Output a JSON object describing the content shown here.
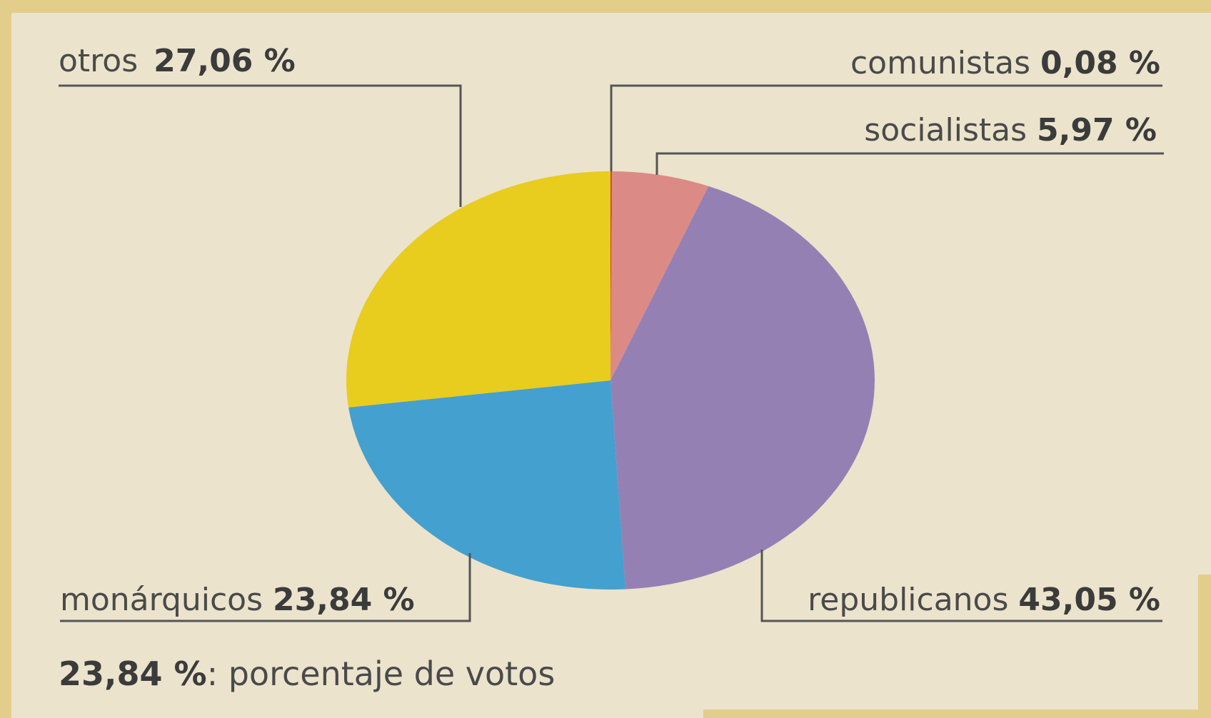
{
  "chart_data": {
    "type": "pie",
    "title": "",
    "slices": [
      {
        "label": "comunistas",
        "value_text": "0,08 %",
        "value": 0.08,
        "color": "#c0392b"
      },
      {
        "label": "socialistas",
        "value_text": "5,97 %",
        "value": 5.97,
        "color": "#dc8a86"
      },
      {
        "label": "republicanos",
        "value_text": "43,05 %",
        "value": 43.05,
        "color": "#9580b4"
      },
      {
        "label": "monárquicos",
        "value_text": "23,84 %",
        "value": 23.84,
        "color": "#44a0cf"
      },
      {
        "label": "otros",
        "value_text": "27,06 %",
        "value": 27.06,
        "color": "#e8cc1e"
      }
    ],
    "note": {
      "value": "23,84 %",
      "text": ": porcentaje de votos"
    }
  },
  "colors": {
    "background": "#ebe3cc",
    "frame": "#e2cd8a",
    "leader_line": "#555555"
  }
}
